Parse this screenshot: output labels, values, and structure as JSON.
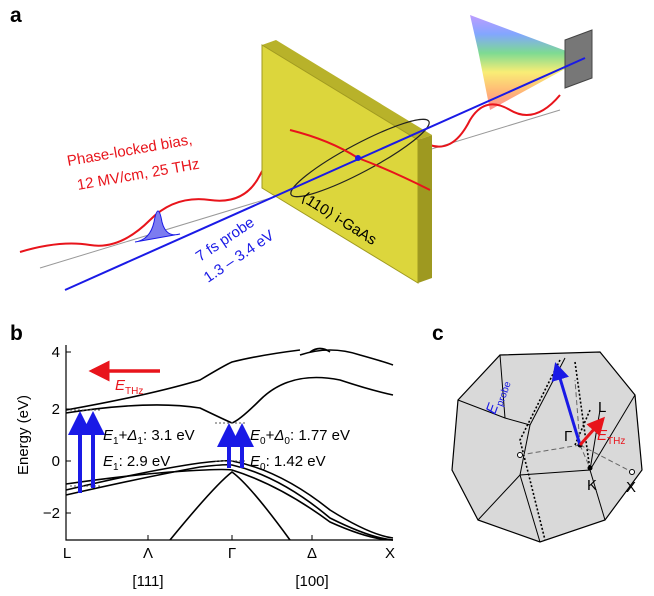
{
  "panels": {
    "a": {
      "label": "a",
      "bias_line1": "Phase-locked bias,",
      "bias_line2": "12 MV/cm, 25 THz",
      "probe_line1": "7 fs probe",
      "probe_line2": "1.3 – 3.4 eV",
      "sample": "⟨110⟩ i-GaAs"
    },
    "b": {
      "label": "b",
      "y_axis": "Energy (eV)",
      "yticks": [
        "4",
        "2",
        "0",
        "−2"
      ],
      "x_points": [
        "L",
        "Λ",
        "Γ",
        "Δ",
        "X"
      ],
      "directions": [
        "[111]",
        "[100]"
      ],
      "field": [
        "E",
        "THz"
      ],
      "annotations": [
        [
          "E",
          "1",
          "+",
          "Δ",
          "1",
          ": 3.1 eV"
        ],
        [
          "E",
          "1",
          ": 2.9 eV"
        ],
        [
          "E",
          "0",
          "+",
          "Δ",
          "0",
          ": 1.77 eV"
        ],
        [
          "E",
          "0",
          ": 1.42 eV"
        ]
      ]
    },
    "c": {
      "label": "c",
      "probe": [
        "E",
        "probe"
      ],
      "field": [
        "E",
        "THz"
      ],
      "points": [
        "Γ",
        "L",
        "K",
        "X"
      ]
    }
  }
}
